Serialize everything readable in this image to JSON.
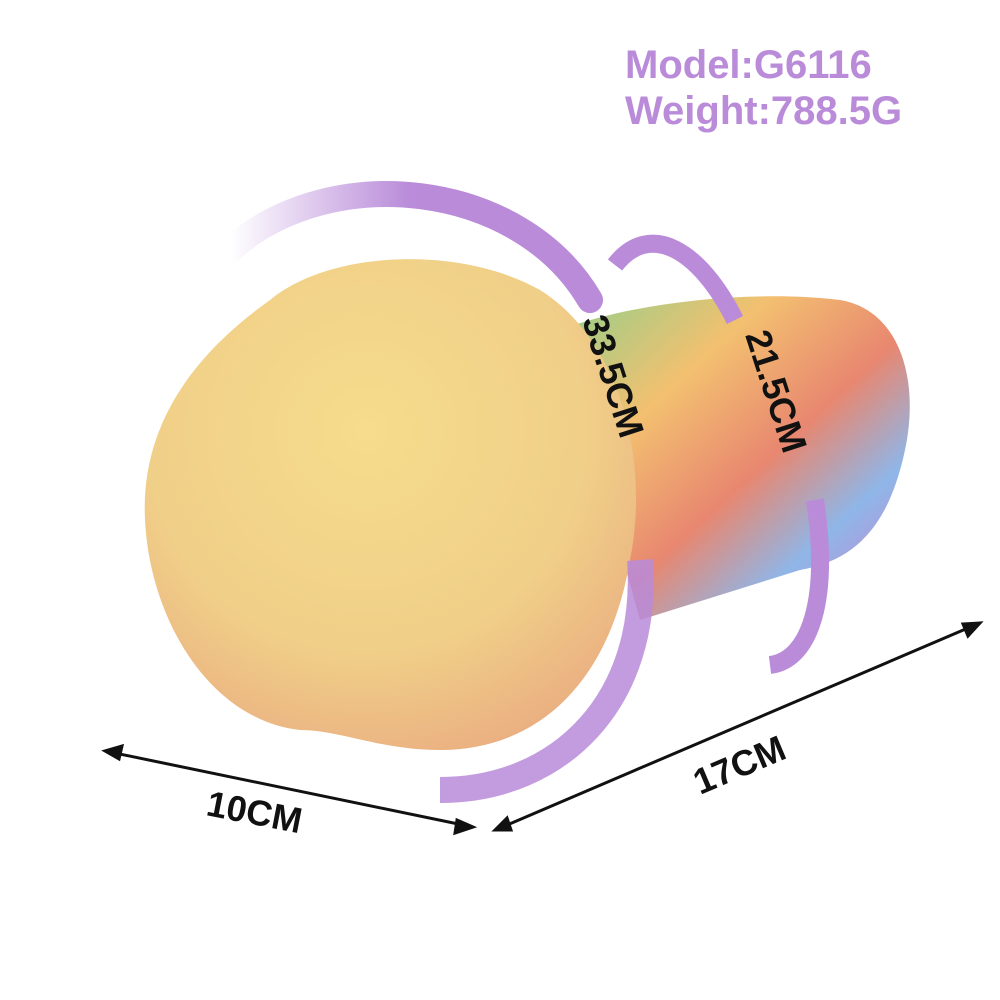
{
  "header": {
    "model": "Model:G6116",
    "weight": "Weight:788.5G"
  },
  "dimensions": {
    "circumference_large": "33.5CM",
    "circumference_small": "21.5CM",
    "length": "17CM",
    "width": "10CM"
  }
}
